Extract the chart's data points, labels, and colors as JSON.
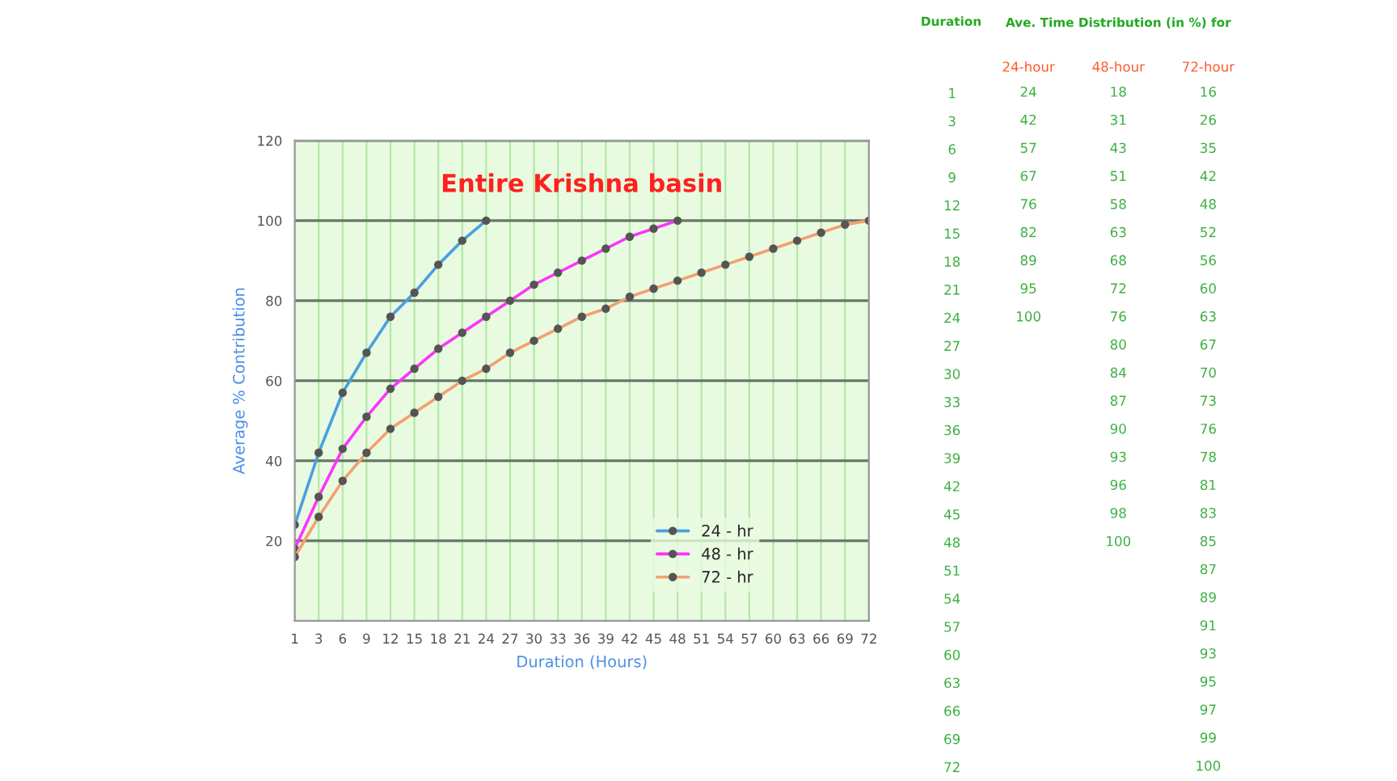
{
  "chart_data": [
    {
      "type": "line",
      "title": "Entire Krishna basin",
      "xlabel": "Duration (Hours)",
      "ylabel": "Average % Contribution",
      "categories": [
        "1",
        "3",
        "6",
        "9",
        "12",
        "15",
        "18",
        "21",
        "24",
        "27",
        "30",
        "33",
        "36",
        "39",
        "42",
        "45",
        "48",
        "51",
        "54",
        "57",
        "60",
        "63",
        "66",
        "69",
        "72"
      ],
      "series": [
        {
          "name": "24 - hr",
          "color": "#4a9fe0",
          "values": [
            24,
            42,
            57,
            67,
            76,
            82,
            89,
            95,
            100,
            null,
            null,
            null,
            null,
            null,
            null,
            null,
            null,
            null,
            null,
            null,
            null,
            null,
            null,
            null,
            null
          ]
        },
        {
          "name": "48 - hr",
          "color": "#ff33ff",
          "values": [
            18,
            31,
            43,
            51,
            58,
            63,
            68,
            72,
            76,
            80,
            84,
            87,
            90,
            93,
            96,
            98,
            100,
            null,
            null,
            null,
            null,
            null,
            null,
            null,
            null
          ]
        },
        {
          "name": "72 - hr",
          "color": "#f4a070",
          "values": [
            16,
            26,
            35,
            42,
            48,
            52,
            56,
            60,
            63,
            67,
            70,
            73,
            76,
            78,
            81,
            83,
            85,
            87,
            89,
            91,
            93,
            95,
            97,
            99,
            100
          ]
        }
      ],
      "ylim": [
        0,
        120
      ],
      "yticks": [
        20,
        40,
        60,
        80,
        100,
        120
      ],
      "grid": true,
      "legend": "bottom right",
      "marker": "circle",
      "line_style": "solid"
    },
    {
      "type": "heatmap",
      "title": "Ave. Time Distribution (in %) for",
      "ylabel": "Duration",
      "categories": [
        "24-hour",
        "48-hour",
        "72-hour"
      ],
      "y_categories": [
        "1",
        "3",
        "6",
        "9",
        "12",
        "15",
        "18",
        "21",
        "24",
        "27",
        "30",
        "33",
        "36",
        "39",
        "42",
        "45",
        "48",
        "51",
        "54",
        "57",
        "60",
        "63",
        "66",
        "69",
        "72"
      ],
      "cells": [
        [
          24,
          18,
          16
        ],
        [
          42,
          31,
          26
        ],
        [
          57,
          43,
          35
        ],
        [
          67,
          51,
          42
        ],
        [
          76,
          58,
          48
        ],
        [
          82,
          63,
          52
        ],
        [
          89,
          68,
          56
        ],
        [
          95,
          72,
          60
        ],
        [
          100,
          76,
          63
        ],
        [
          null,
          80,
          67
        ],
        [
          null,
          84,
          70
        ],
        [
          null,
          87,
          73
        ],
        [
          null,
          90,
          76
        ],
        [
          null,
          93,
          78
        ],
        [
          null,
          96,
          81
        ],
        [
          null,
          98,
          83
        ],
        [
          null,
          100,
          85
        ],
        [
          null,
          null,
          87
        ],
        [
          null,
          null,
          89
        ],
        [
          null,
          null,
          91
        ],
        [
          null,
          null,
          93
        ],
        [
          null,
          null,
          95
        ],
        [
          null,
          null,
          97
        ],
        [
          null,
          null,
          99
        ],
        [
          null,
          null,
          100
        ]
      ],
      "data_labels": true
    }
  ]
}
